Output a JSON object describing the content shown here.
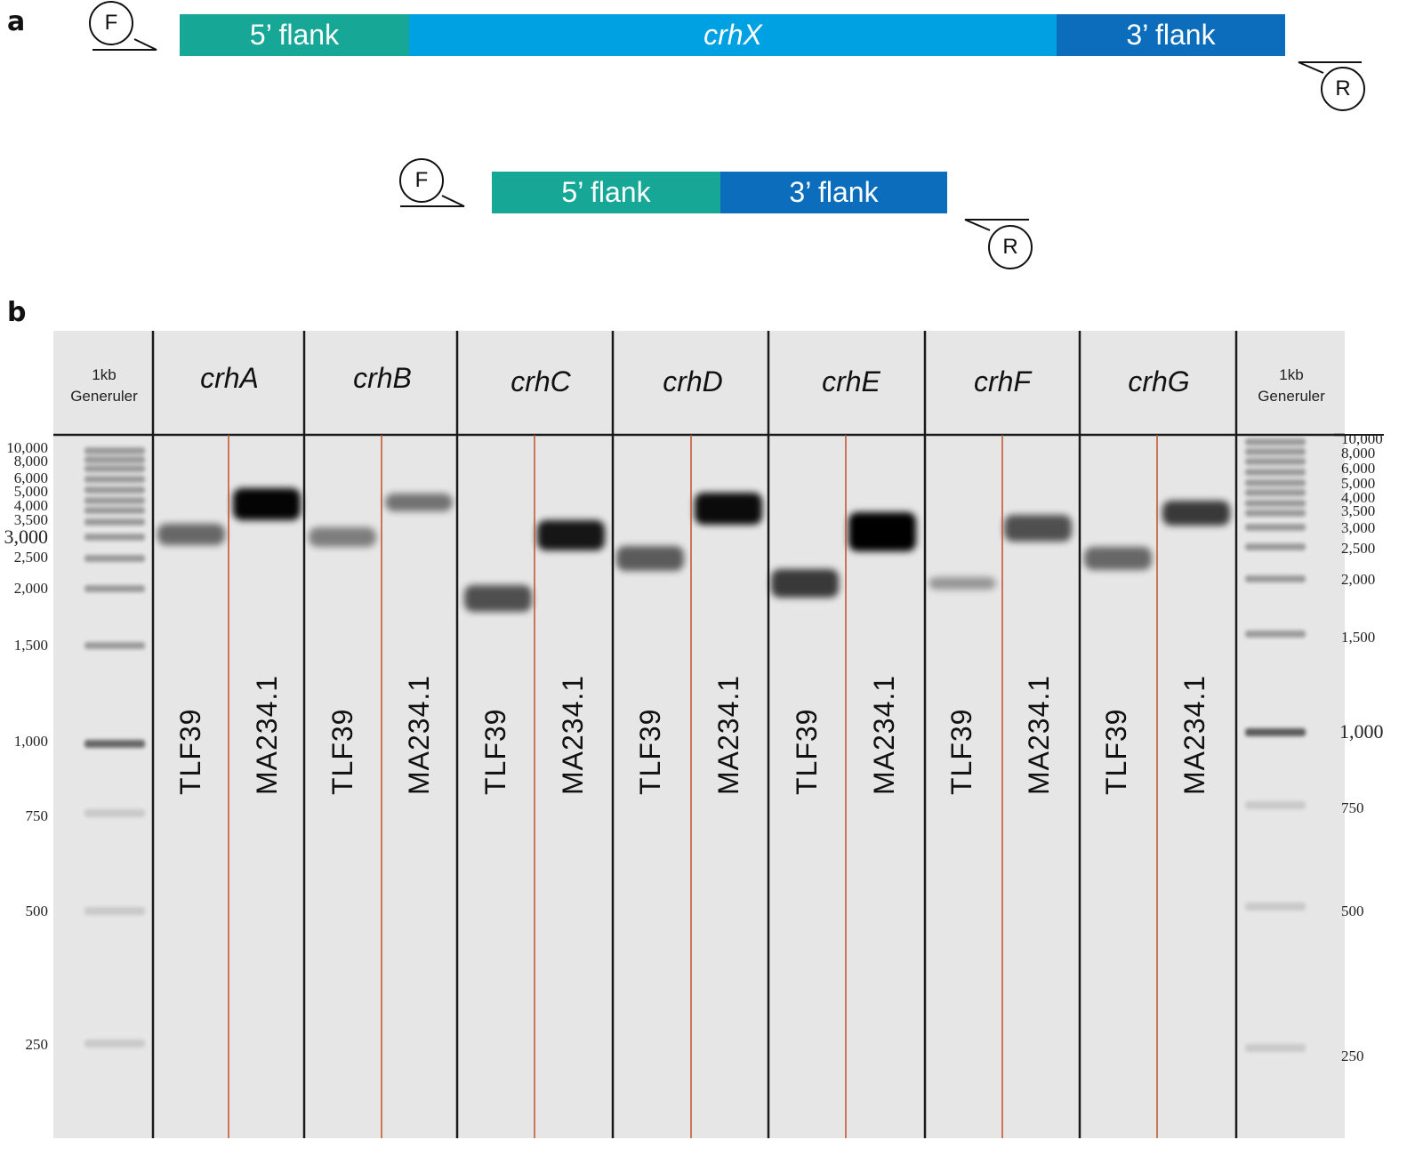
{
  "panel_a": {
    "label": "a",
    "construct_top": {
      "segments": [
        {
          "label": "5’ flank",
          "italic": false,
          "color": "#17a797"
        },
        {
          "label": "crhX",
          "italic": true,
          "color": "#00a1e2"
        },
        {
          "label": "3’ flank",
          "italic": false,
          "color": "#0b6dbb"
        }
      ],
      "forward_primer": "F",
      "reverse_primer": "R"
    },
    "construct_bottom": {
      "segments": [
        {
          "label": "5’ flank",
          "italic": false,
          "color": "#17a797"
        },
        {
          "label": "3’ flank",
          "italic": false,
          "color": "#0b6dbb"
        }
      ],
      "forward_primer": "F",
      "reverse_primer": "R"
    }
  },
  "panel_b": {
    "label": "b",
    "ladder_title_left": [
      "1kb",
      "Generuler"
    ],
    "ladder_title_right": [
      "1kb",
      "Generuler"
    ],
    "genes": [
      "crhA",
      "crhB",
      "crhC",
      "crhD",
      "crhE",
      "crhF",
      "crhG"
    ],
    "lane_labels": [
      "TLF39",
      "MA234.1"
    ],
    "ladder_sizes_left": [
      "10,000",
      "8,000",
      "6,000",
      "5,000",
      "4,000",
      "3,500",
      "3,000",
      "2,500",
      "2,000",
      "1,500",
      "1,000",
      "750",
      "500",
      "250"
    ],
    "ladder_sizes_right": [
      "10,000",
      "8,000",
      "6,000",
      "5,000",
      "4,000",
      "3,500",
      "3,000",
      "2,500",
      "2,000",
      "1,500",
      "1,000",
      "750",
      "500",
      "250"
    ],
    "colors": {
      "gel": "#e6e6e6",
      "divider": "#1a1a1a",
      "lane_separator": "#c0502a",
      "band": "#000000"
    }
  }
}
